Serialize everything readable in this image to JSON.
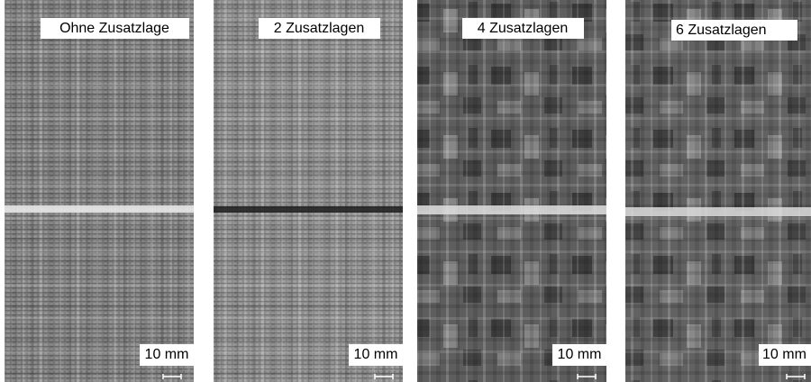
{
  "panels": [
    {
      "label": "Ohne Zusatzlage",
      "scale": "10 mm"
    },
    {
      "label": "2 Zusatzlagen",
      "scale": "10 mm"
    },
    {
      "label": "4 Zusatzlagen",
      "scale": "10 mm"
    },
    {
      "label": "6 Zusatzlagen",
      "scale": "10 mm"
    }
  ]
}
